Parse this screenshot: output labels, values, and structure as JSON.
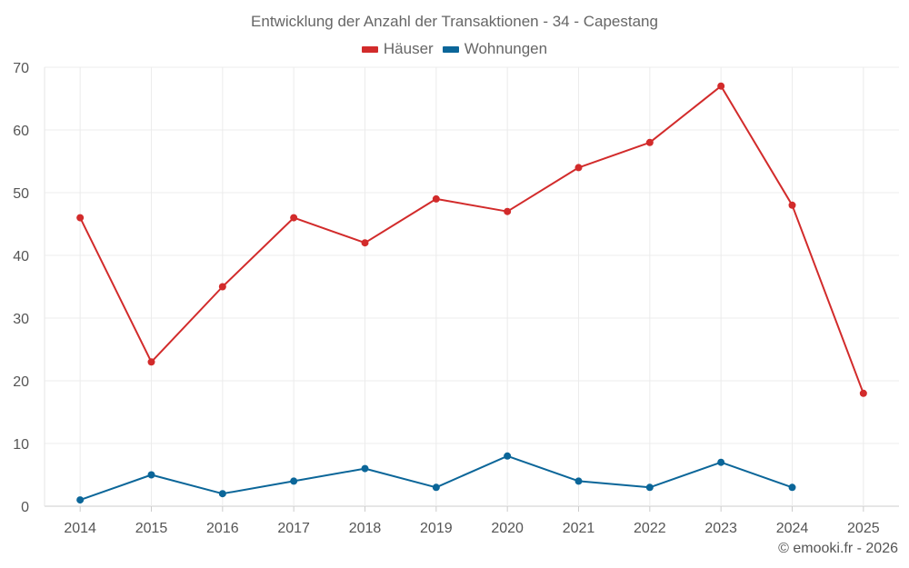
{
  "chart_data": {
    "type": "line",
    "title": "Entwicklung der Anzahl der Transaktionen - 34 - Capestang",
    "categories": [
      "2014",
      "2015",
      "2016",
      "2017",
      "2018",
      "2019",
      "2020",
      "2021",
      "2022",
      "2023",
      "2024",
      "2025"
    ],
    "ylim": [
      0,
      70
    ],
    "yticks": [
      0,
      10,
      20,
      30,
      40,
      50,
      60,
      70
    ],
    "grid": true,
    "legend_position": "top-center",
    "series": [
      {
        "name": "Häuser",
        "color": "#d22b2b",
        "values": [
          46,
          23,
          35,
          46,
          42,
          49,
          47,
          54,
          58,
          67,
          48,
          18
        ]
      },
      {
        "name": "Wohnungen",
        "color": "#0b6699",
        "values": [
          1,
          5,
          2,
          4,
          6,
          3,
          8,
          4,
          3,
          7,
          3,
          null
        ]
      }
    ]
  },
  "credit": "© emooki.fr - 2026"
}
